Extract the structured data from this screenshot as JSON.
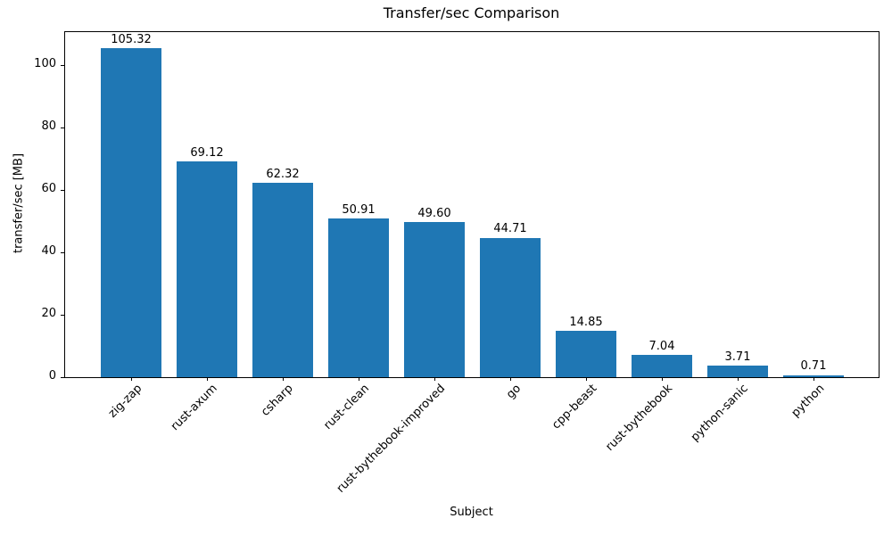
{
  "chart_data": {
    "type": "bar",
    "title": "Transfer/sec Comparison",
    "xlabel": "Subject",
    "ylabel": "transfer/sec [MB]",
    "categories": [
      "zig-zap",
      "rust-axum",
      "csharp",
      "rust-clean",
      "rust-bythebook-improved",
      "go",
      "cpp-beast",
      "rust-bythebook",
      "python-sanic",
      "python"
    ],
    "values": [
      105.32,
      69.12,
      62.32,
      50.91,
      49.6,
      44.71,
      14.85,
      7.04,
      3.71,
      0.71
    ],
    "value_labels": [
      "105.32",
      "69.12",
      "62.32",
      "50.91",
      "49.60",
      "44.71",
      "14.85",
      "7.04",
      "3.71",
      "0.71"
    ],
    "yticks": [
      0,
      20,
      40,
      60,
      80,
      100
    ],
    "ylim": [
      0,
      110.6
    ],
    "bar_color": "#1f77b4",
    "background_color": "#ffffff",
    "grid": false,
    "legend": null
  }
}
